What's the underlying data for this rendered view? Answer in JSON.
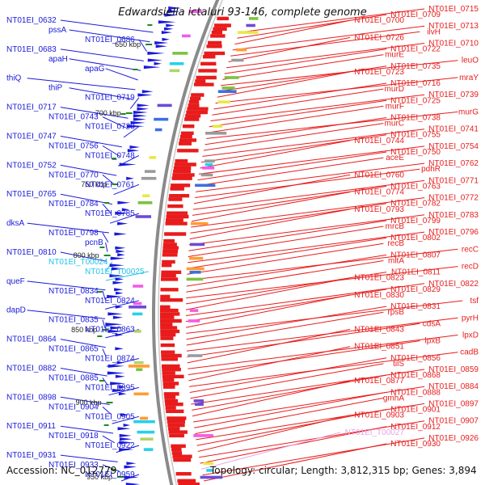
{
  "title": "Edwardsiella ictaluri 93-146, complete genome",
  "accession": "Accession: NC_012779",
  "summary": "Topology: circular; Length: 3,812,315 bp; Genes: 3,894",
  "colors": {
    "forward": "#1a1ad9",
    "reverse": "#e81c1c",
    "rna": "#22c4e8",
    "pseudo": "#e6a3e6",
    "axis": "#8a8a8a",
    "tick": "#1e8a1e"
  },
  "scale_ticks": [
    "650 kbp",
    "700 kbp",
    "750 kbp",
    "800 kbp",
    "850 kbp",
    "900 kbp",
    "950 kbp"
  ],
  "left_labels": [
    {
      "text": "NT01EI_0632",
      "kind": "cds"
    },
    {
      "text": "pssA",
      "kind": "cds"
    },
    {
      "text": "NT01EI_0686",
      "kind": "cds"
    },
    {
      "text": "NT01EI_0683",
      "kind": "cds"
    },
    {
      "text": "apaH",
      "kind": "cds"
    },
    {
      "text": "apaG",
      "kind": "cds"
    },
    {
      "text": "thiQ",
      "kind": "cds"
    },
    {
      "text": "thiP",
      "kind": "cds"
    },
    {
      "text": "NT01EI_0719",
      "kind": "cds"
    },
    {
      "text": "NT01EI_0717",
      "kind": "cds"
    },
    {
      "text": "NT01EI_0743",
      "kind": "cds"
    },
    {
      "text": "NT01EI_0720",
      "kind": "cds"
    },
    {
      "text": "NT01EI_0747",
      "kind": "cds"
    },
    {
      "text": "NT01EI_0756",
      "kind": "cds"
    },
    {
      "text": "NT01EI_0748",
      "kind": "cds"
    },
    {
      "text": "NT01EI_0752",
      "kind": "cds"
    },
    {
      "text": "NT01EI_0770",
      "kind": "cds"
    },
    {
      "text": "NT01EI_0761",
      "kind": "cds"
    },
    {
      "text": "NT01EI_0765",
      "kind": "cds"
    },
    {
      "text": "NT01EI_0784",
      "kind": "cds"
    },
    {
      "text": "NT01EI_0785",
      "kind": "cds"
    },
    {
      "text": "dksA",
      "kind": "cds"
    },
    {
      "text": "NT01EI_0798",
      "kind": "cds"
    },
    {
      "text": "pcnB",
      "kind": "cds"
    },
    {
      "text": "NT01EI_0810",
      "kind": "cds"
    },
    {
      "text": "NT01EI_T00024",
      "kind": "rna"
    },
    {
      "text": "NT01EI_T00025",
      "kind": "rna"
    },
    {
      "text": "queF",
      "kind": "cds"
    },
    {
      "text": "NT01EI_0834",
      "kind": "cds"
    },
    {
      "text": "NT01EI_0824",
      "kind": "cds"
    },
    {
      "text": "dapD",
      "kind": "cds"
    },
    {
      "text": "NT01EI_0835",
      "kind": "cds"
    },
    {
      "text": "NT01EI_0863",
      "kind": "cds"
    },
    {
      "text": "NT01EI_0864",
      "kind": "cds"
    },
    {
      "text": "NT01EI_0865",
      "kind": "cds"
    },
    {
      "text": "NT01EI_0874",
      "kind": "cds"
    },
    {
      "text": "NT01EI_0882",
      "kind": "cds"
    },
    {
      "text": "NT01EI_0885",
      "kind": "cds"
    },
    {
      "text": "NT01EI_0895",
      "kind": "cds"
    },
    {
      "text": "NT01EI_0898",
      "kind": "cds"
    },
    {
      "text": "NT01EI_0904",
      "kind": "cds"
    },
    {
      "text": "NT01EI_0905",
      "kind": "cds"
    },
    {
      "text": "NT01EI_0911",
      "kind": "cds"
    },
    {
      "text": "NT01EI_0918",
      "kind": "cds"
    },
    {
      "text": "NT01EI_0922",
      "kind": "cds"
    },
    {
      "text": "NT01EI_0931",
      "kind": "cds"
    },
    {
      "text": "NT01EI_0933",
      "kind": "cds"
    },
    {
      "text": "NT01EI_0959",
      "kind": "cds"
    }
  ],
  "right_labels": [
    {
      "text": "NT01EI_0715",
      "kind": "cds"
    },
    {
      "text": "NT01EI_0709",
      "kind": "cds"
    },
    {
      "text": "NT01EI_0700",
      "kind": "cds"
    },
    {
      "text": "NT01EI_0713",
      "kind": "cds"
    },
    {
      "text": "ilvH",
      "kind": "cds"
    },
    {
      "text": "NT01EI_0726",
      "kind": "cds"
    },
    {
      "text": "NT01EI_0710",
      "kind": "cds"
    },
    {
      "text": "NT01EI_0722",
      "kind": "cds"
    },
    {
      "text": "murE",
      "kind": "cds"
    },
    {
      "text": "leuO",
      "kind": "cds"
    },
    {
      "text": "NT01EI_0735",
      "kind": "cds"
    },
    {
      "text": "NT01EI_0723",
      "kind": "cds"
    },
    {
      "text": "mraY",
      "kind": "cds"
    },
    {
      "text": "NT01EI_0716",
      "kind": "cds"
    },
    {
      "text": "murD",
      "kind": "cds"
    },
    {
      "text": "NT01EI_0739",
      "kind": "cds"
    },
    {
      "text": "NT01EI_0725",
      "kind": "cds"
    },
    {
      "text": "murF",
      "kind": "cds"
    },
    {
      "text": "murG",
      "kind": "cds"
    },
    {
      "text": "NT01EI_0738",
      "kind": "cds"
    },
    {
      "text": "murC",
      "kind": "cds"
    },
    {
      "text": "NT01EI_0741",
      "kind": "cds"
    },
    {
      "text": "NT01EI_0755",
      "kind": "cds"
    },
    {
      "text": "NT01EI_0744",
      "kind": "cds"
    },
    {
      "text": "NT01EI_0754",
      "kind": "cds"
    },
    {
      "text": "NT01EI_0750",
      "kind": "cds"
    },
    {
      "text": "aceE",
      "kind": "cds"
    },
    {
      "text": "NT01EI_0762",
      "kind": "cds"
    },
    {
      "text": "pdhR",
      "kind": "cds"
    },
    {
      "text": "NT01EI_0760",
      "kind": "cds"
    },
    {
      "text": "NT01EI_0771",
      "kind": "cds"
    },
    {
      "text": "NT01EI_0763",
      "kind": "cds"
    },
    {
      "text": "NT01EI_0774",
      "kind": "cds"
    },
    {
      "text": "NT01EI_0772",
      "kind": "cds"
    },
    {
      "text": "NT01EI_0782",
      "kind": "cds"
    },
    {
      "text": "NT01EI_0793",
      "kind": "cds"
    },
    {
      "text": "NT01EI_0783",
      "kind": "cds"
    },
    {
      "text": "NT01EI_0799",
      "kind": "cds"
    },
    {
      "text": "mrcB",
      "kind": "cds"
    },
    {
      "text": "NT01EI_0796",
      "kind": "cds"
    },
    {
      "text": "NT01EI_0802",
      "kind": "cds"
    },
    {
      "text": "recB",
      "kind": "cds"
    },
    {
      "text": "recC",
      "kind": "cds"
    },
    {
      "text": "NT01EI_0807",
      "kind": "cds"
    },
    {
      "text": "mltA",
      "kind": "cds"
    },
    {
      "text": "recD",
      "kind": "cds"
    },
    {
      "text": "NT01EI_0811",
      "kind": "cds"
    },
    {
      "text": "NT01EI_0823",
      "kind": "cds"
    },
    {
      "text": "NT01EI_0822",
      "kind": "cds"
    },
    {
      "text": "NT01EI_0829",
      "kind": "cds"
    },
    {
      "text": "NT01EI_0830",
      "kind": "cds"
    },
    {
      "text": "tsf",
      "kind": "cds"
    },
    {
      "text": "NT01EI_0831",
      "kind": "cds"
    },
    {
      "text": "rpsB",
      "kind": "cds"
    },
    {
      "text": "pyrH",
      "kind": "cds"
    },
    {
      "text": "cdsA",
      "kind": "cds"
    },
    {
      "text": "NT01EI_0843",
      "kind": "cds"
    },
    {
      "text": "lpxD",
      "kind": "cds"
    },
    {
      "text": "lpxB",
      "kind": "cds"
    },
    {
      "text": "NT01EI_0851",
      "kind": "cds"
    },
    {
      "text": "cadB",
      "kind": "cds"
    },
    {
      "text": "NT01EI_0856",
      "kind": "cds"
    },
    {
      "text": "tilS",
      "kind": "cds"
    },
    {
      "text": "NT01EI_0859",
      "kind": "cds"
    },
    {
      "text": "NT01EI_0868",
      "kind": "cds"
    },
    {
      "text": "NT01EI_0877",
      "kind": "cds"
    },
    {
      "text": "NT01EI_0884",
      "kind": "cds"
    },
    {
      "text": "NT01EI_0888",
      "kind": "cds"
    },
    {
      "text": "gmhA",
      "kind": "cds"
    },
    {
      "text": "NT01EI_0897",
      "kind": "cds"
    },
    {
      "text": "NT01EI_0901",
      "kind": "cds"
    },
    {
      "text": "NT01EI_0903",
      "kind": "cds"
    },
    {
      "text": "NT01EI_0907",
      "kind": "cds"
    },
    {
      "text": "NT01EI_0912",
      "kind": "cds"
    },
    {
      "text": "NT01EI_T00027",
      "kind": "pseudo"
    },
    {
      "text": "NT01EI_0926",
      "kind": "cds"
    },
    {
      "text": "NT01EI_0930",
      "kind": "cds"
    }
  ]
}
